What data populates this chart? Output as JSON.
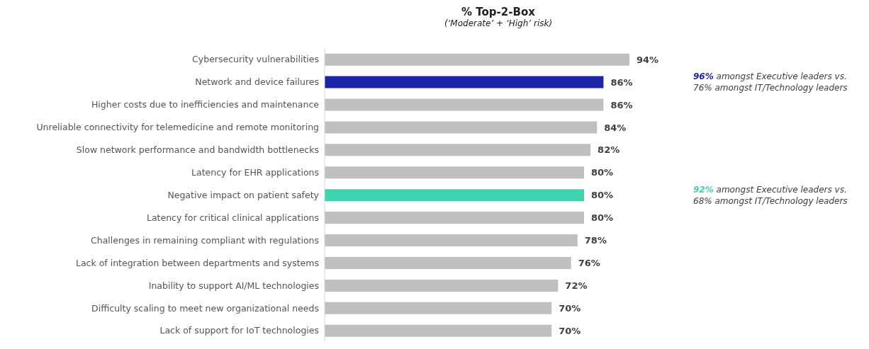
{
  "chart_data": {
    "type": "bar",
    "orientation": "horizontal",
    "title": "% Top-2-Box",
    "subtitle": "(‘Moderate’ + ‘High’ risk)",
    "categories": [
      "Cybersecurity vulnerabilities",
      "Network and device failures",
      "Higher costs due to inefficiencies and maintenance",
      "Unreliable connectivity for telemedicine and remote monitoring",
      "Slow network performance and bandwidth bottlenecks",
      "Latency for EHR applications",
      "Negative impact on patient safety",
      "Latency for critical clinical applications",
      "Challenges in remaining compliant with regulations",
      "Lack of integration between departments and systems",
      "Inability to support AI/ML technologies",
      "Difficulty scaling to meet new organizational needs",
      "Lack of support for IoT technologies"
    ],
    "values": [
      94,
      86,
      86,
      84,
      82,
      80,
      80,
      80,
      78,
      76,
      72,
      70,
      70
    ],
    "colors": [
      "#bfbfbf",
      "#1f23a8",
      "#bfbfbf",
      "#bfbfbf",
      "#bfbfbf",
      "#bfbfbf",
      "#3dd4b0",
      "#bfbfbf",
      "#bfbfbf",
      "#bfbfbf",
      "#bfbfbf",
      "#bfbfbf",
      "#bfbfbf"
    ],
    "value_labels": [
      "94%",
      "86%",
      "86%",
      "84%",
      "82%",
      "80%",
      "80%",
      "80%",
      "78%",
      "76%",
      "72%",
      "70%",
      "70%"
    ],
    "annotations": [
      "96% amongst Executive leaders vs. 76% amongst IT/Technology leaders",
      "92% amongst Executive leaders vs. 68% amongst IT/Technology leaders"
    ]
  }
}
